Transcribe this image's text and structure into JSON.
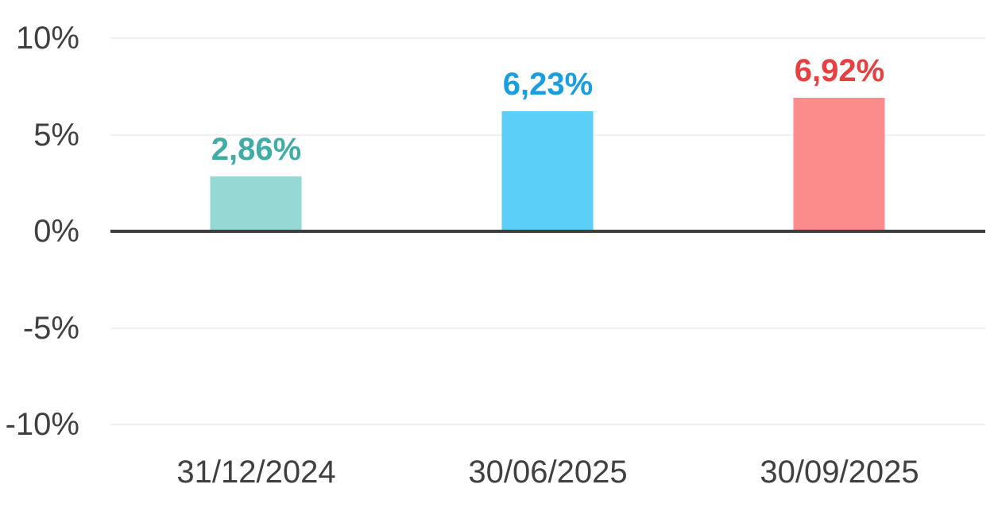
{
  "chart": {
    "background_color": "#ffffff",
    "axis_line_color": "#3f3f3f",
    "gridline_color": "#f0f0f0",
    "tick_text_color": "#404040"
  },
  "chart_data": {
    "type": "bar",
    "title": "",
    "xlabel": "",
    "ylabel": "",
    "categories": [
      "31/12/2024",
      "30/06/2025",
      "30/09/2025"
    ],
    "values": [
      2.86,
      6.23,
      6.92
    ],
    "points": [
      {
        "category": "31/12/2024",
        "value": 2.86,
        "value_label": "2,86%",
        "bar_color": "#96d9d4",
        "label_color": "#41aca6"
      },
      {
        "category": "30/06/2025",
        "value": 6.23,
        "value_label": "6,23%",
        "bar_color": "#5bcff8",
        "label_color": "#189fe0"
      },
      {
        "category": "30/09/2025",
        "value": 6.92,
        "value_label": "6,92%",
        "bar_color": "#fb8c8b",
        "label_color": "#e84040"
      }
    ],
    "y_ticks": [
      {
        "label": "10%",
        "value": 10
      },
      {
        "label": "5%",
        "value": 5
      },
      {
        "label": "0%",
        "value": 0
      },
      {
        "label": "-5%",
        "value": -5
      },
      {
        "label": "-10%",
        "value": -10
      }
    ],
    "ylim": [
      -10,
      10
    ],
    "grid": true,
    "legend_position": "none",
    "decimal_separator": ","
  }
}
